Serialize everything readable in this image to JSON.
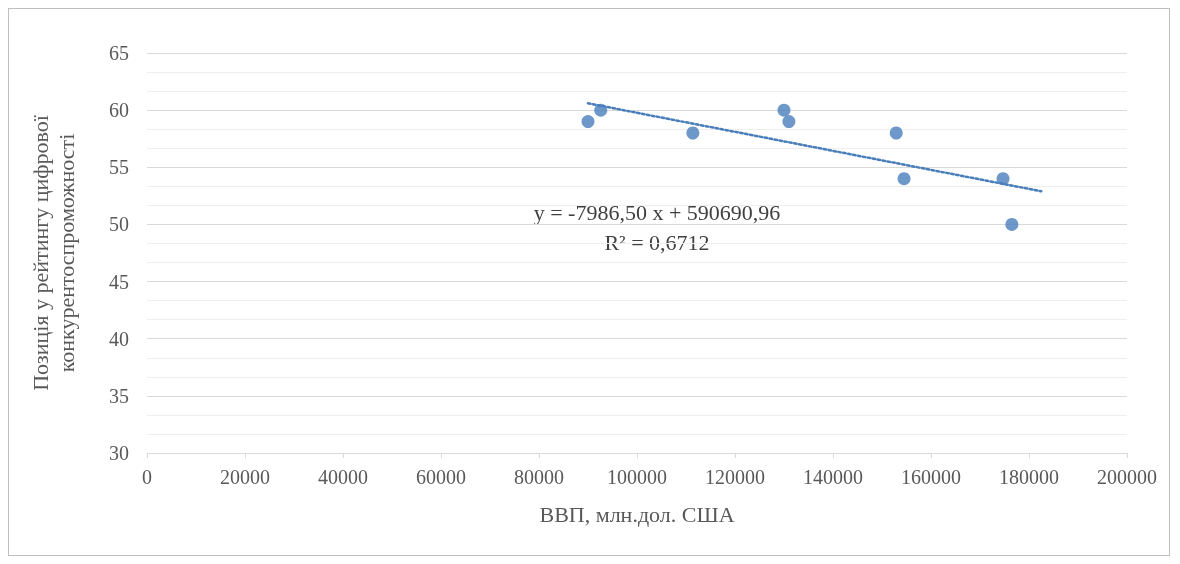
{
  "chart_data": {
    "type": "scatter",
    "xlabel": "ВВП, млн.дол. США",
    "ylabel": "Позиція у рейтингу цифрової конкурентоспроможності",
    "xlim": [
      0,
      200000
    ],
    "xticks": [
      0,
      20000,
      40000,
      60000,
      80000,
      100000,
      120000,
      140000,
      160000,
      180000,
      200000
    ],
    "ylim": [
      30,
      65
    ],
    "yticks": [
      30,
      35,
      40,
      45,
      50,
      55,
      60,
      65
    ],
    "grid": "y",
    "annotations": [
      "y = -7986,50 x + 590690,96",
      "R² = 0,6712"
    ],
    "series": [
      {
        "type": "scatter",
        "color": "#4a7ebb",
        "marker": "circle",
        "x": [
          90000,
          92600,
          111400,
          130000,
          131000,
          152900,
          154500,
          174700,
          176500
        ],
        "values": [
          59,
          60,
          58,
          60,
          59,
          58,
          54,
          54,
          50
        ]
      },
      {
        "type": "line",
        "color": "#4a7ebb",
        "marker": "none",
        "line_style": "dotted",
        "x": [
          90000,
          182500
        ],
        "values": [
          60.6,
          52.9
        ]
      }
    ]
  }
}
